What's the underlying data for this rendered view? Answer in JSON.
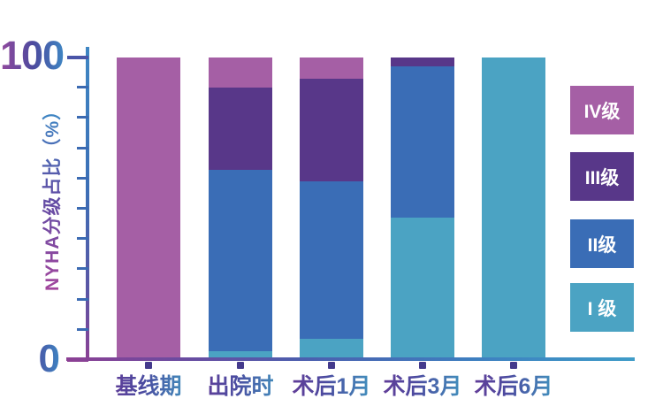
{
  "chart_data": {
    "type": "bar",
    "stacked": true,
    "title": "",
    "categories": [
      "基线期",
      "出院时",
      "术后1月",
      "术后3月",
      "术后6月"
    ],
    "series": [
      {
        "name": "I 级",
        "color": "#4ba3c3",
        "values": [
          0,
          3,
          7,
          47,
          100
        ]
      },
      {
        "name": "II级",
        "color": "#3a6db6",
        "values": [
          0,
          60,
          52,
          50,
          0
        ]
      },
      {
        "name": "III级",
        "color": "#583789",
        "values": [
          0,
          27,
          34,
          3,
          0
        ]
      },
      {
        "name": "IV级",
        "color": "#a55fa5",
        "values": [
          100,
          10,
          7,
          0,
          0
        ]
      }
    ],
    "ylabel": "NYHA分级占比（%）",
    "xlabel": "",
    "ylim": [
      0,
      100
    ],
    "yticks": [
      0,
      10,
      20,
      30,
      40,
      50,
      60,
      70,
      80,
      90,
      100
    ],
    "y_max_label": "100",
    "y_min_label": "0",
    "grid": false,
    "legend_position": "right",
    "legend_order_top_to_bottom": [
      "IV级",
      "III级",
      "II级",
      "I 级"
    ]
  },
  "palette": {
    "axis_gradient_top": "#3e86c3",
    "axis_gradient_bottom": "#8c4094",
    "xaxis_gradient_left": "#8c4094",
    "xaxis_gradient_right": "#3f9cc8",
    "tick_minor": "#3b6ab2",
    "tick_top": "#4a55a8",
    "tick_bottom": "#8c4094",
    "category_marker": "#443a8c",
    "number_gradient": [
      "#93499e",
      "#4d4a9e",
      "#3e85c3"
    ],
    "xlabel_gradient": [
      "#6a3795",
      "#3fa6c6"
    ],
    "ylabel_gradient": [
      "#a3469d",
      "#3e85c3"
    ],
    "legend_text": "#ffffff",
    "background": "#ffffff"
  }
}
